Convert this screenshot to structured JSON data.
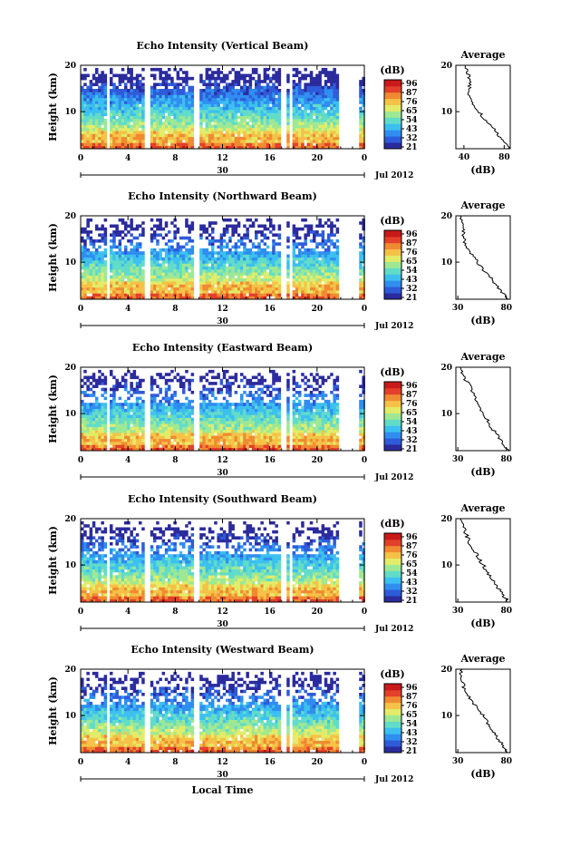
{
  "chart_data": [
    {
      "type": "heatmap",
      "title": "Echo Intensity (Vertical Beam)",
      "ylabel": "Height (km)",
      "ylim": [
        2,
        20
      ],
      "yticks": [
        "20",
        "10"
      ],
      "xlim": [
        0,
        24
      ],
      "xticks": [
        "0",
        "4",
        "8",
        "12",
        "16",
        "20",
        "0"
      ],
      "date_day": "30",
      "date_month": "Jul 2012",
      "colorbar_unit": "(dB)",
      "colorbar_ticks": [
        "96",
        "87",
        "76",
        "65",
        "54",
        "43",
        "32",
        "21"
      ],
      "profile": {
        "title": "Average",
        "xlabel": "(dB)",
        "xticks": [
          "40",
          "80"
        ],
        "xlim": [
          32,
          86
        ],
        "yticks": [
          "20",
          "10"
        ],
        "heights": [
          20,
          18,
          16,
          14,
          12,
          10,
          8,
          6,
          4,
          2
        ],
        "values": [
          42,
          44,
          46,
          45,
          47,
          55,
          62,
          70,
          78,
          84
        ]
      }
    },
    {
      "type": "heatmap",
      "title": "Echo Intensity (Northward Beam)",
      "ylabel": "Height (km)",
      "ylim": [
        2,
        20
      ],
      "yticks": [
        "20",
        "10"
      ],
      "xlim": [
        0,
        24
      ],
      "xticks": [
        "0",
        "4",
        "8",
        "12",
        "16",
        "20",
        "0"
      ],
      "date_day": "30",
      "date_month": "Jul 2012",
      "colorbar_unit": "(dB)",
      "colorbar_ticks": [
        "96",
        "87",
        "76",
        "65",
        "54",
        "43",
        "32",
        "21"
      ],
      "profile": {
        "title": "Average",
        "xlabel": "(dB)",
        "xticks": [
          "30",
          "80"
        ],
        "xlim": [
          28,
          84
        ],
        "yticks": [
          "20",
          "10"
        ],
        "heights": [
          20,
          18,
          16,
          14,
          12,
          10,
          8,
          6,
          4,
          2
        ],
        "values": [
          32,
          34,
          36,
          38,
          44,
          50,
          58,
          66,
          74,
          81
        ]
      }
    },
    {
      "type": "heatmap",
      "title": "Echo Intensity (Eastward Beam)",
      "ylabel": "Height (km)",
      "ylim": [
        2,
        20
      ],
      "yticks": [
        "20",
        "10"
      ],
      "xlim": [
        0,
        24
      ],
      "xticks": [
        "0",
        "4",
        "8",
        "12",
        "16",
        "20",
        "0"
      ],
      "date_day": "30",
      "date_month": "Jul 2012",
      "colorbar_unit": "(dB)",
      "colorbar_ticks": [
        "96",
        "87",
        "76",
        "65",
        "54",
        "43",
        "32",
        "21"
      ],
      "profile": {
        "title": "Average",
        "xlabel": "(dB)",
        "xticks": [
          "30",
          "80"
        ],
        "xlim": [
          28,
          84
        ],
        "yticks": [
          "20",
          "10"
        ],
        "heights": [
          20,
          18,
          16,
          14,
          12,
          10,
          8,
          6,
          4,
          2
        ],
        "values": [
          32,
          36,
          42,
          46,
          50,
          56,
          62,
          68,
          75,
          82
        ]
      }
    },
    {
      "type": "heatmap",
      "title": "Echo Intensity (Southward Beam)",
      "ylabel": "Height (km)",
      "ylim": [
        2,
        20
      ],
      "yticks": [
        "20",
        "10"
      ],
      "xlim": [
        0,
        24
      ],
      "xticks": [
        "0",
        "4",
        "8",
        "12",
        "16",
        "20",
        "0"
      ],
      "date_day": "30",
      "date_month": "Jul 2012",
      "colorbar_unit": "(dB)",
      "colorbar_ticks": [
        "96",
        "87",
        "76",
        "65",
        "54",
        "43",
        "32",
        "21"
      ],
      "profile": {
        "title": "Average",
        "xlabel": "(dB)",
        "xticks": [
          "30",
          "80"
        ],
        "xlim": [
          28,
          84
        ],
        "yticks": [
          "20",
          "10"
        ],
        "heights": [
          20,
          18,
          16,
          14,
          12,
          10,
          8,
          6,
          4,
          2
        ],
        "values": [
          32,
          36,
          40,
          44,
          50,
          56,
          62,
          68,
          75,
          82
        ]
      }
    },
    {
      "type": "heatmap",
      "title": "Echo Intensity (Westward Beam)",
      "ylabel": "Height (km)",
      "ylim": [
        2,
        20
      ],
      "yticks": [
        "20",
        "10"
      ],
      "xlim": [
        0,
        24
      ],
      "xticks": [
        "0",
        "4",
        "8",
        "12",
        "16",
        "20",
        "0"
      ],
      "date_day": "30",
      "date_month": "Jul 2012",
      "colorbar_unit": "(dB)",
      "colorbar_ticks": [
        "96",
        "87",
        "76",
        "65",
        "54",
        "43",
        "32",
        "21"
      ],
      "xlabel": "Local Time",
      "profile": {
        "title": "Average",
        "xlabel": "(dB)",
        "xticks": [
          "30",
          "80"
        ],
        "xlim": [
          28,
          84
        ],
        "yticks": [
          "20",
          "10"
        ],
        "heights": [
          20,
          18,
          16,
          14,
          12,
          10,
          8,
          6,
          4,
          2
        ],
        "values": [
          33,
          34,
          36,
          42,
          48,
          56,
          62,
          68,
          75,
          82
        ]
      }
    }
  ],
  "data_gaps_hours": [
    [
      2.2,
      2.4
    ],
    [
      5.3,
      5.8
    ],
    [
      9.4,
      9.9
    ],
    [
      16.9,
      17.3
    ],
    [
      17.6,
      17.8
    ],
    [
      21.6,
      23.4
    ]
  ],
  "colors": {
    "colormap": [
      "#2b2b9e",
      "#2e5bd9",
      "#2f8ef0",
      "#3cc0ef",
      "#62dcc8",
      "#9ee894",
      "#e2ec68",
      "#f5c247",
      "#f08a31",
      "#e2402a",
      "#c81a1a"
    ]
  }
}
